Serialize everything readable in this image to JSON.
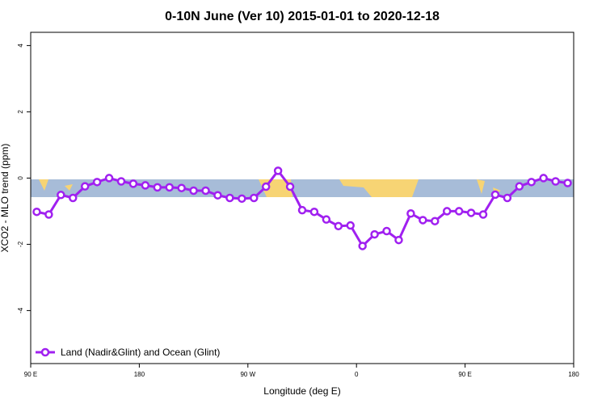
{
  "chart_data": {
    "type": "line",
    "title": "0-10N June (Ver 10)   2015-01-01 to 2020-12-18",
    "x_label": "Longitude (deg E)",
    "y_label": "XCO2 - MLO trend (ppm)",
    "xlim": [
      90,
      540
    ],
    "ylim": [
      -5.6,
      4.4
    ],
    "xticks": [
      {
        "value": 90,
        "label": "90 E"
      },
      180,
      {
        "value": 270,
        "label": "90 W"
      },
      {
        "value": 360,
        "label": "0"
      },
      {
        "value": 450,
        "label": "90 E"
      },
      {
        "value": 540,
        "label": "180"
      }
    ],
    "yticks": [
      -4,
      -2,
      0,
      2,
      4
    ],
    "grid": false,
    "legend": "bottom-left",
    "x": [
      95,
      105,
      115,
      125,
      135,
      145,
      155,
      165,
      175,
      185,
      195,
      205,
      215,
      225,
      235,
      245,
      255,
      265,
      275,
      285,
      295,
      305,
      315,
      325,
      335,
      345,
      355,
      365,
      375,
      385,
      395,
      405,
      415,
      425,
      435,
      445,
      455,
      465,
      475,
      485,
      495,
      505,
      515,
      525,
      535
    ],
    "series": [
      {
        "name": "Land (Nadir&Glint) and Ocean (Glint)",
        "color": "#a020f0",
        "values": [
          -1.02,
          -1.1,
          -0.51,
          -0.6,
          -0.25,
          -0.12,
          0.0,
          -0.1,
          -0.17,
          -0.22,
          -0.28,
          -0.28,
          -0.3,
          -0.38,
          -0.38,
          -0.52,
          -0.6,
          -0.62,
          -0.6,
          -0.26,
          0.22,
          -0.26,
          -0.97,
          -1.02,
          -1.25,
          -1.45,
          -1.43,
          -2.05,
          -1.7,
          -1.6,
          -1.87,
          -1.07,
          -1.27,
          -1.3,
          -1.0,
          -1.0,
          -1.05,
          -1.1,
          -0.5,
          -0.6,
          -0.25,
          -0.12,
          0.0,
          -0.1,
          -0.15
        ]
      }
    ]
  }
}
